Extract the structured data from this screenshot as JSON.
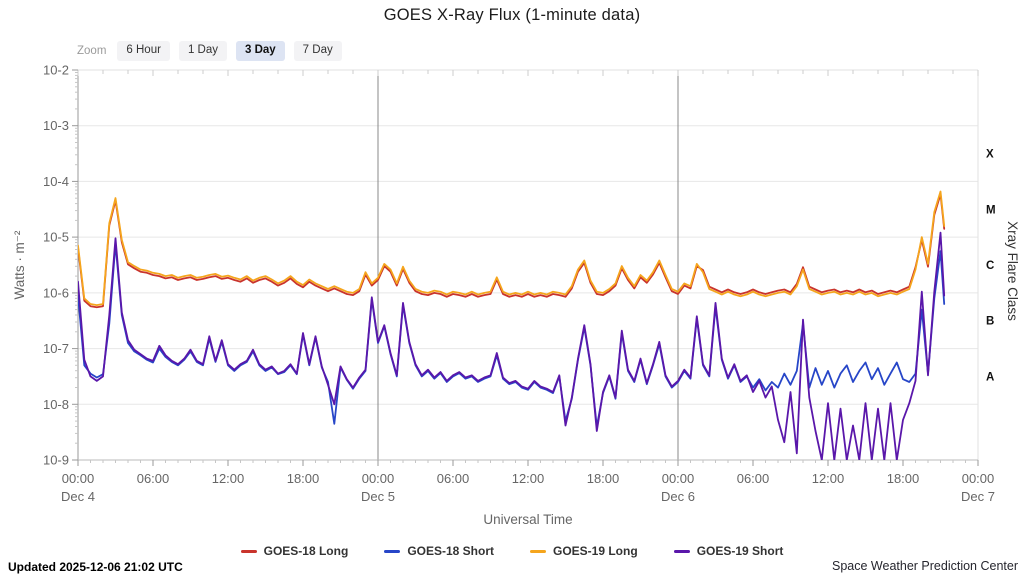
{
  "header": {
    "title": "GOES X-Ray Flux (1-minute data)"
  },
  "zoom": {
    "label": "Zoom",
    "buttons": [
      {
        "label": "6 Hour",
        "active": false
      },
      {
        "label": "1 Day",
        "active": false
      },
      {
        "label": "3 Day",
        "active": true
      },
      {
        "label": "7 Day",
        "active": false
      }
    ]
  },
  "footer": {
    "updated": "Updated 2025-12-06 21:02 UTC",
    "credit": "Space Weather Prediction Center"
  },
  "chart_data": {
    "type": "line",
    "title": "GOES X-Ray Flux (1-minute data)",
    "xlabel": "Universal Time",
    "ylabel": "Watts · m⁻²",
    "y2label": "Xray Flare Class",
    "yscale": "log",
    "ylim_log10": [
      -9,
      -2
    ],
    "xlim_hours": [
      0,
      72
    ],
    "grid": true,
    "y_ticks": [
      {
        "log10": -2,
        "label": "10-2"
      },
      {
        "log10": -3,
        "label": "10-3"
      },
      {
        "log10": -4,
        "label": "10-4"
      },
      {
        "log10": -5,
        "label": "10-5"
      },
      {
        "log10": -6,
        "label": "10-6"
      },
      {
        "log10": -7,
        "label": "10-7"
      },
      {
        "log10": -8,
        "label": "10-8"
      },
      {
        "log10": -9,
        "label": "10-9"
      }
    ],
    "flare_classes": [
      {
        "label": "X",
        "log10_center": -3.5
      },
      {
        "label": "M",
        "log10_center": -4.5
      },
      {
        "label": "C",
        "log10_center": -5.5
      },
      {
        "label": "B",
        "log10_center": -6.5
      },
      {
        "label": "A",
        "log10_center": -7.5
      }
    ],
    "x_ticks": [
      {
        "h": 0,
        "time": "00:00",
        "date": "Dec 4"
      },
      {
        "h": 6,
        "time": "06:00"
      },
      {
        "h": 12,
        "time": "12:00"
      },
      {
        "h": 18,
        "time": "18:00"
      },
      {
        "h": 24,
        "time": "00:00",
        "date": "Dec 5"
      },
      {
        "h": 30,
        "time": "06:00"
      },
      {
        "h": 36,
        "time": "12:00"
      },
      {
        "h": 42,
        "time": "18:00"
      },
      {
        "h": 48,
        "time": "00:00",
        "date": "Dec 6"
      },
      {
        "h": 54,
        "time": "06:00"
      },
      {
        "h": 60,
        "time": "12:00"
      },
      {
        "h": 66,
        "time": "18:00"
      },
      {
        "h": 72,
        "time": "00:00",
        "date": "Dec 7"
      }
    ],
    "day_lines_hours": [
      24,
      48
    ],
    "x_hours": {
      "start": 0,
      "step": 0.5,
      "count": 139,
      "extra": [
        69.3
      ]
    },
    "series": [
      {
        "name": "GOES-18 Long",
        "color": "#c9342c",
        "width": 1.8,
        "log10_values": [
          -5.19,
          -6.14,
          -6.24,
          -6.26,
          -6.24,
          -4.79,
          -4.34,
          -5.09,
          -5.49,
          -5.56,
          -5.62,
          -5.64,
          -5.68,
          -5.7,
          -5.74,
          -5.72,
          -5.77,
          -5.74,
          -5.72,
          -5.77,
          -5.75,
          -5.72,
          -5.7,
          -5.75,
          -5.73,
          -5.77,
          -5.8,
          -5.74,
          -5.82,
          -5.77,
          -5.74,
          -5.8,
          -5.87,
          -5.82,
          -5.74,
          -5.84,
          -5.9,
          -5.8,
          -5.87,
          -5.92,
          -5.97,
          -5.92,
          -5.97,
          -6.02,
          -6.04,
          -5.97,
          -5.67,
          -5.87,
          -5.77,
          -5.52,
          -5.62,
          -5.87,
          -5.57,
          -5.82,
          -5.97,
          -6.02,
          -6.04,
          -6.0,
          -6.02,
          -6.07,
          -6.02,
          -6.04,
          -6.07,
          -6.02,
          -6.07,
          -6.04,
          -6.02,
          -5.76,
          -6.02,
          -6.07,
          -6.04,
          -6.07,
          -6.02,
          -6.07,
          -6.04,
          -6.07,
          -6.02,
          -6.04,
          -6.07,
          -5.92,
          -5.62,
          -5.46,
          -5.82,
          -6.02,
          -6.04,
          -5.97,
          -5.87,
          -5.56,
          -5.77,
          -5.92,
          -5.72,
          -5.82,
          -5.67,
          -5.46,
          -5.72,
          -5.97,
          -6.02,
          -5.87,
          -5.92,
          -5.52,
          -5.59,
          -5.89,
          -5.94,
          -5.99,
          -5.94,
          -5.99,
          -6.02,
          -5.99,
          -5.94,
          -5.99,
          -6.02,
          -5.99,
          -5.96,
          -5.94,
          -5.99,
          -5.84,
          -5.54,
          -5.89,
          -5.94,
          -5.99,
          -5.96,
          -5.94,
          -5.99,
          -5.96,
          -5.99,
          -5.94,
          -5.99,
          -5.96,
          -6.02,
          -5.99,
          -5.96,
          -5.99,
          -5.94,
          -5.89,
          -5.54,
          -5.05,
          -5.53,
          -4.6,
          -4.23,
          -4.85
        ]
      },
      {
        "name": "GOES-18 Short",
        "color": "#2746c8",
        "width": 1.8,
        "log10_values": [
          -6.05,
          -7.3,
          -7.45,
          -7.52,
          -7.46,
          -6.55,
          -5.12,
          -6.4,
          -6.9,
          -7.05,
          -7.12,
          -7.2,
          -7.25,
          -7.0,
          -7.15,
          -7.24,
          -7.3,
          -7.2,
          -7.05,
          -7.24,
          -7.3,
          -6.82,
          -7.24,
          -6.88,
          -7.3,
          -7.4,
          -7.3,
          -7.24,
          -7.05,
          -7.3,
          -7.4,
          -7.34,
          -7.46,
          -7.42,
          -7.3,
          -7.46,
          -6.75,
          -7.3,
          -6.8,
          -7.34,
          -7.6,
          -8.35,
          -7.34,
          -7.56,
          -7.72,
          -7.54,
          -7.4,
          -6.12,
          -6.9,
          -6.6,
          -7.1,
          -7.5,
          -6.22,
          -6.9,
          -7.3,
          -7.5,
          -7.4,
          -7.54,
          -7.44,
          -7.6,
          -7.5,
          -7.44,
          -7.54,
          -7.5,
          -7.6,
          -7.54,
          -7.5,
          -7.12,
          -7.54,
          -7.64,
          -7.6,
          -7.7,
          -7.74,
          -7.6,
          -7.7,
          -7.74,
          -7.8,
          -7.5,
          -8.3,
          -7.9,
          -7.2,
          -6.62,
          -7.3,
          -8.4,
          -7.8,
          -7.5,
          -7.9,
          -6.72,
          -7.4,
          -7.6,
          -7.2,
          -7.64,
          -7.3,
          -6.92,
          -7.5,
          -7.7,
          -7.6,
          -7.4,
          -7.54,
          -6.46,
          -7.3,
          -7.5,
          -6.25,
          -7.2,
          -7.54,
          -7.3,
          -7.6,
          -7.5,
          -7.7,
          -7.55,
          -7.75,
          -7.6,
          -7.7,
          -7.45,
          -7.65,
          -7.4,
          -6.55,
          -7.7,
          -7.35,
          -7.65,
          -7.4,
          -7.7,
          -7.45,
          -7.3,
          -7.6,
          -7.4,
          -7.25,
          -7.55,
          -7.35,
          -7.65,
          -7.45,
          -7.25,
          -7.55,
          -7.6,
          -7.45,
          -6.3,
          -7.45,
          -6.1,
          -5.25,
          -6.2
        ]
      },
      {
        "name": "GOES-19 Long",
        "color": "#f5a51d",
        "width": 1.8,
        "log10_values": [
          -5.15,
          -6.1,
          -6.2,
          -6.22,
          -6.2,
          -4.75,
          -4.3,
          -5.05,
          -5.45,
          -5.52,
          -5.58,
          -5.6,
          -5.64,
          -5.66,
          -5.7,
          -5.68,
          -5.73,
          -5.7,
          -5.68,
          -5.73,
          -5.71,
          -5.68,
          -5.66,
          -5.71,
          -5.69,
          -5.73,
          -5.76,
          -5.7,
          -5.78,
          -5.73,
          -5.7,
          -5.76,
          -5.83,
          -5.78,
          -5.7,
          -5.8,
          -5.86,
          -5.76,
          -5.83,
          -5.88,
          -5.93,
          -5.88,
          -5.93,
          -5.98,
          -6.0,
          -5.93,
          -5.63,
          -5.83,
          -5.73,
          -5.48,
          -5.58,
          -5.83,
          -5.53,
          -5.78,
          -5.93,
          -5.98,
          -6.0,
          -5.96,
          -5.98,
          -6.03,
          -5.98,
          -6.0,
          -6.03,
          -5.98,
          -6.03,
          -6.0,
          -5.98,
          -5.72,
          -5.98,
          -6.03,
          -6.0,
          -6.03,
          -5.98,
          -6.03,
          -6.0,
          -6.03,
          -5.98,
          -6.0,
          -6.03,
          -5.88,
          -5.58,
          -5.42,
          -5.78,
          -5.98,
          -6.0,
          -5.93,
          -5.83,
          -5.52,
          -5.73,
          -5.88,
          -5.68,
          -5.78,
          -5.63,
          -5.42,
          -5.68,
          -5.93,
          -5.98,
          -5.83,
          -5.88,
          -5.48,
          -5.63,
          -5.93,
          -5.98,
          -6.03,
          -5.98,
          -6.03,
          -6.06,
          -6.03,
          -5.98,
          -6.03,
          -6.06,
          -6.03,
          -6.0,
          -5.98,
          -6.03,
          -5.88,
          -5.58,
          -5.93,
          -5.98,
          -6.03,
          -6.0,
          -5.98,
          -6.03,
          -6.0,
          -6.03,
          -5.98,
          -6.03,
          -6.0,
          -6.06,
          -6.03,
          -6.0,
          -6.03,
          -5.98,
          -5.93,
          -5.58,
          -5.0,
          -5.48,
          -4.55,
          -4.18,
          -4.8
        ]
      },
      {
        "name": "GOES-19 Short",
        "color": "#5a17aa",
        "width": 1.8,
        "log10_values": [
          -5.8,
          -7.2,
          -7.5,
          -7.58,
          -7.5,
          -6.4,
          -5.02,
          -6.35,
          -6.85,
          -7.02,
          -7.1,
          -7.18,
          -7.22,
          -6.95,
          -7.12,
          -7.22,
          -7.28,
          -7.18,
          -7.02,
          -7.22,
          -7.28,
          -6.78,
          -7.22,
          -6.85,
          -7.28,
          -7.38,
          -7.28,
          -7.22,
          -7.02,
          -7.28,
          -7.38,
          -7.32,
          -7.45,
          -7.4,
          -7.28,
          -7.45,
          -6.72,
          -7.28,
          -6.78,
          -7.32,
          -7.65,
          -8.0,
          -7.32,
          -7.55,
          -7.7,
          -7.52,
          -7.38,
          -6.08,
          -6.88,
          -6.58,
          -7.08,
          -7.48,
          -6.18,
          -6.88,
          -7.28,
          -7.48,
          -7.38,
          -7.52,
          -7.42,
          -7.58,
          -7.48,
          -7.42,
          -7.52,
          -7.48,
          -7.58,
          -7.52,
          -7.48,
          -7.08,
          -7.52,
          -7.62,
          -7.58,
          -7.68,
          -7.72,
          -7.58,
          -7.68,
          -7.72,
          -7.78,
          -7.48,
          -8.38,
          -7.88,
          -7.18,
          -6.58,
          -7.28,
          -8.48,
          -7.78,
          -7.48,
          -7.88,
          -6.68,
          -7.38,
          -7.58,
          -7.18,
          -7.62,
          -7.28,
          -6.88,
          -7.48,
          -7.68,
          -7.58,
          -7.38,
          -7.52,
          -6.42,
          -7.28,
          -7.48,
          -6.18,
          -7.18,
          -7.52,
          -7.28,
          -7.58,
          -7.48,
          -7.78,
          -7.58,
          -7.88,
          -7.68,
          -8.28,
          -8.68,
          -7.78,
          -8.88,
          -6.48,
          -7.88,
          -8.48,
          -9.0,
          -7.98,
          -9.0,
          -8.08,
          -9.0,
          -8.38,
          -9.0,
          -7.98,
          -9.0,
          -8.08,
          -9.0,
          -7.98,
          -9.0,
          -8.28,
          -7.98,
          -7.58,
          -5.98,
          -7.48,
          -5.98,
          -4.92,
          -6.05
        ]
      }
    ]
  }
}
